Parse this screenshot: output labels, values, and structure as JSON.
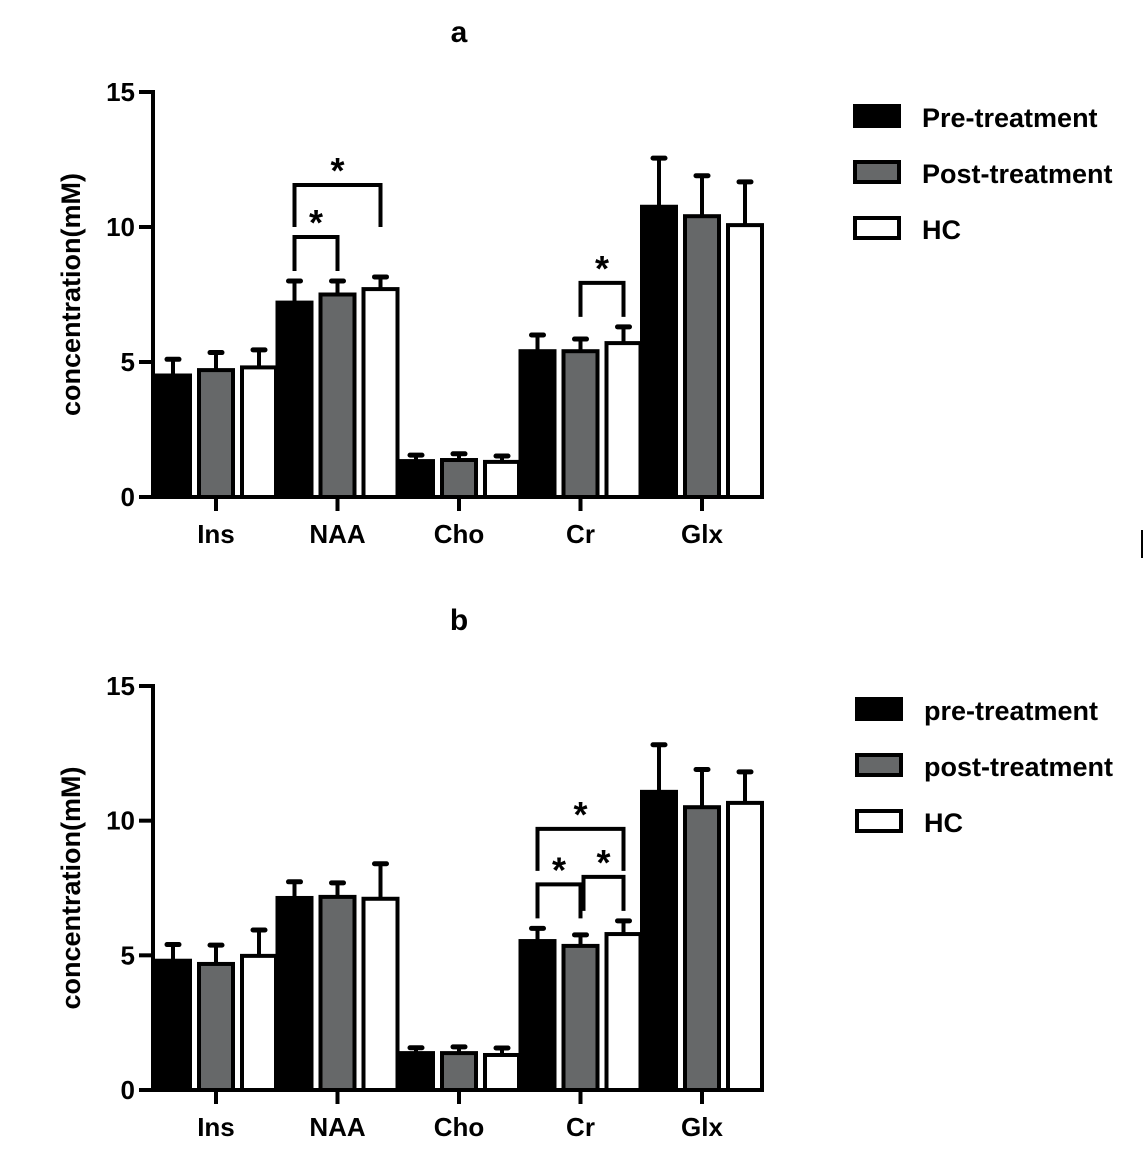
{
  "chart_data": [
    {
      "type": "bar",
      "title": "a",
      "xlabel": "",
      "ylabel": "concentration(mM)",
      "ylim": [
        0,
        15
      ],
      "yticks": [
        0,
        5,
        10,
        15
      ],
      "ytick_labels": [
        "0",
        "5",
        "10",
        "15"
      ],
      "categories": [
        "Ins",
        "NAA",
        "Cho",
        "Cr",
        "Glx"
      ],
      "legend_position": "right",
      "grid": false,
      "series": [
        {
          "name": "Pre-treatment",
          "color": "#000000",
          "values": [
            4.5,
            7.2,
            1.33,
            5.4,
            10.75
          ],
          "errors": [
            0.6,
            0.8,
            0.22,
            0.6,
            1.8
          ]
        },
        {
          "name": "Post-treatment",
          "color": "#666869",
          "values": [
            4.7,
            7.5,
            1.37,
            5.4,
            10.4
          ],
          "errors": [
            0.65,
            0.5,
            0.23,
            0.45,
            1.5
          ]
        },
        {
          "name": "HC",
          "color": "#ffffff",
          "values": [
            4.8,
            7.7,
            1.3,
            5.7,
            10.07
          ],
          "errors": [
            0.65,
            0.45,
            0.22,
            0.6,
            1.6
          ]
        }
      ],
      "significance": [
        {
          "category": "NAA",
          "from": 0,
          "to": 1,
          "label": "*",
          "level": 1
        },
        {
          "category": "NAA",
          "from": 0,
          "to": 2,
          "label": "*",
          "level": 2
        },
        {
          "category": "Cr",
          "from": 1,
          "to": 2,
          "label": "*",
          "level": 1
        }
      ]
    },
    {
      "type": "bar",
      "title": "b",
      "xlabel": "",
      "ylabel": "concentration(mM)",
      "ylim": [
        0,
        15
      ],
      "yticks": [
        0,
        5,
        10,
        15
      ],
      "ytick_labels": [
        "0",
        "5",
        "10",
        "15"
      ],
      "categories": [
        "Ins",
        "NAA",
        "Cho",
        "Cr",
        "Glx"
      ],
      "legend_position": "right",
      "grid": false,
      "series": [
        {
          "name": "pre-treatment",
          "color": "#000000",
          "values": [
            4.8,
            7.13,
            1.37,
            5.53,
            11.07
          ],
          "errors": [
            0.6,
            0.6,
            0.2,
            0.47,
            1.75
          ]
        },
        {
          "name": "post-treatment",
          "color": "#666869",
          "values": [
            4.68,
            7.17,
            1.37,
            5.35,
            10.5
          ],
          "errors": [
            0.7,
            0.52,
            0.23,
            0.41,
            1.4
          ]
        },
        {
          "name": "HC",
          "color": "#ffffff",
          "values": [
            4.98,
            7.1,
            1.3,
            5.79,
            10.66
          ],
          "errors": [
            0.96,
            1.3,
            0.26,
            0.49,
            1.15
          ]
        }
      ],
      "significance": [
        {
          "category": "Cr",
          "from": 0,
          "to": 1,
          "label": "*",
          "level": 1
        },
        {
          "category": "Cr",
          "from": 1,
          "to": 2,
          "label": "*",
          "level": 1
        },
        {
          "category": "Cr",
          "from": 0,
          "to": 2,
          "label": "*",
          "level": 2
        }
      ]
    }
  ]
}
